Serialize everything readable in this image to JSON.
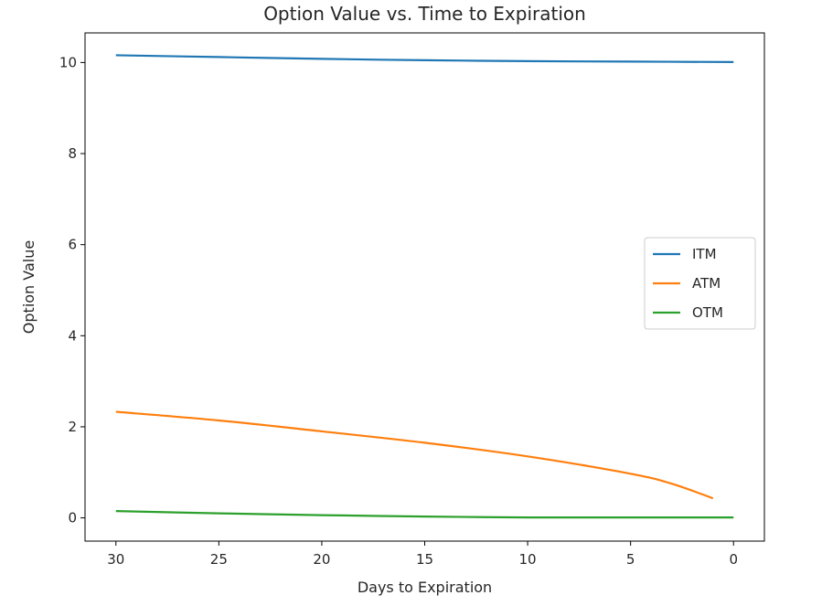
{
  "chart_data": {
    "type": "line",
    "title": "Option Value vs. Time to Expiration",
    "xlabel": "Days to Expiration",
    "ylabel": "Option Value",
    "xlim": [
      31.5,
      -1.5
    ],
    "ylim": [
      -0.51,
      10.65
    ],
    "x_inverted": true,
    "grid": false,
    "legend_position": "center-right",
    "xticks": [
      30,
      25,
      20,
      15,
      10,
      5,
      0
    ],
    "yticks": [
      0,
      2,
      4,
      6,
      8,
      10
    ],
    "series": [
      {
        "name": "ITM",
        "color": "#1f77b4",
        "x": [
          30,
          25,
          20,
          15,
          10,
          5,
          0
        ],
        "values": [
          10.16,
          10.12,
          10.08,
          10.05,
          10.03,
          10.02,
          10.01
        ]
      },
      {
        "name": "ATM",
        "color": "#ff7f0e",
        "x": [
          30,
          25,
          20,
          15,
          10,
          5,
          3,
          1
        ],
        "values": [
          2.33,
          2.14,
          1.9,
          1.65,
          1.35,
          0.97,
          0.75,
          0.43
        ]
      },
      {
        "name": "OTM",
        "color": "#2ca02c",
        "x": [
          30,
          25,
          20,
          15,
          10,
          5,
          0
        ],
        "values": [
          0.15,
          0.1,
          0.06,
          0.03,
          0.01,
          0.01,
          0.01
        ]
      }
    ]
  }
}
